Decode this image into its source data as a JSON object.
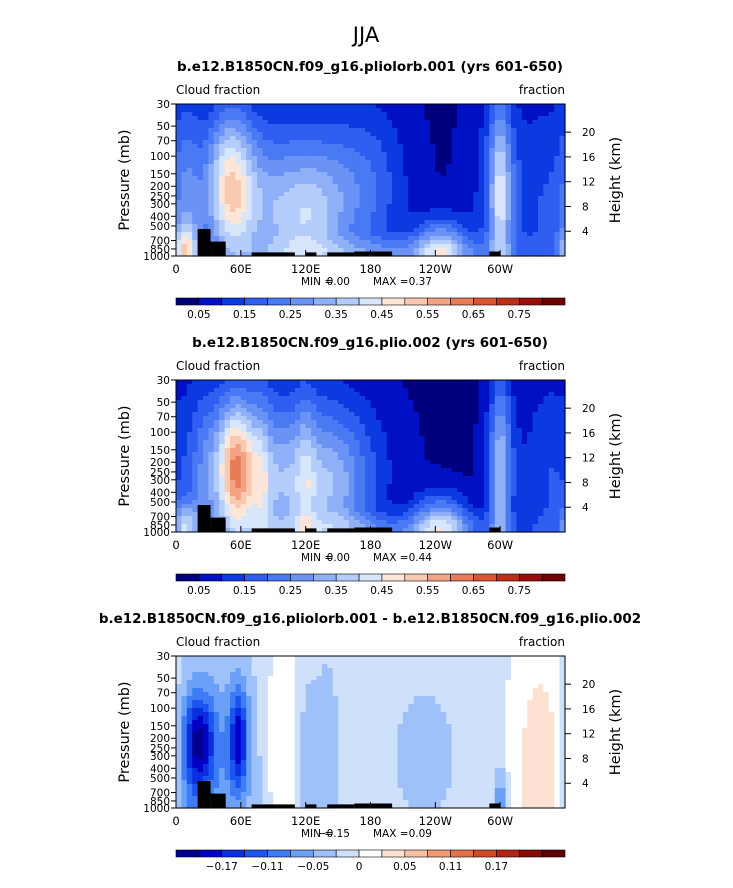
{
  "page_title": "JJA",
  "colors": {
    "seq": [
      "#00007e",
      "#0010c4",
      "#0a3ae0",
      "#2f5ef0",
      "#4a79f4",
      "#6a93f5",
      "#8fb0f7",
      "#b4cdfa",
      "#d8e6fc",
      "#fde6d8",
      "#f9c9b1",
      "#f2a383",
      "#e97b57",
      "#da5631",
      "#c02d17",
      "#9b0d0a",
      "#700000"
    ],
    "diff": [
      "#000090",
      "#0000c8",
      "#0a2ee0",
      "#1a55f0",
      "#3d7cf5",
      "#6aa0f7",
      "#9fc1f9",
      "#cfe0fb",
      "#ffffff",
      "#fde2d4",
      "#f9c1a3",
      "#f19a74",
      "#e5704a",
      "#d14a28",
      "#b32212",
      "#8c0606",
      "#5e0000"
    ]
  },
  "chart_data": [
    {
      "type": "heatmap",
      "title": "b.e12.B1850CN.f09_g16.pliolorb.001 (yrs 601-650)",
      "left_label": "Cloud fraction",
      "right_label": "fraction",
      "ylabel": "Pressure (mb)",
      "ylabel_right": "Height (km)",
      "x_ticks": [
        "0",
        "60E",
        "120E",
        "180",
        "120W",
        "60W"
      ],
      "y_ticks": [
        "1000",
        "850",
        "700",
        "500",
        "400",
        "300",
        "250",
        "200",
        "150",
        "100",
        "70",
        "50",
        "30"
      ],
      "y_right_ticks": [
        "4",
        "8",
        "12",
        "16",
        "20"
      ],
      "stats": {
        "min_label": "MIN =",
        "min": "0.00",
        "max_label": "MAX =",
        "max": "0.37"
      },
      "colorbar_labels": [
        "0.05",
        "0.15",
        "0.25",
        "0.35",
        "0.45",
        "0.55",
        "0.65",
        "0.75"
      ],
      "colorbar_levels": [
        0.0,
        0.05,
        0.1,
        0.15,
        0.2,
        0.25,
        0.3,
        0.35,
        0.4,
        0.45,
        0.5,
        0.55,
        0.6,
        0.65,
        0.7,
        0.75,
        0.8
      ],
      "palette": "seq",
      "vmin": 0.0,
      "vmax": 0.8,
      "base": 0.04,
      "blobs": [
        {
          "lon": 50,
          "p": 200,
          "dlon": 15,
          "dz": 1.2,
          "amp": 0.33
        },
        {
          "lon": 80,
          "p": 150,
          "dlon": 45,
          "dz": 1.3,
          "amp": 0.12
        },
        {
          "lon": 100,
          "p": 500,
          "dlon": 38,
          "dz": 1.1,
          "amp": 0.2
        },
        {
          "lon": 125,
          "p": 500,
          "dlon": 18,
          "dz": 0.9,
          "amp": 0.07
        },
        {
          "lon": 150,
          "p": 220,
          "dlon": 30,
          "dz": 1.2,
          "amp": 0.12
        },
        {
          "lon": 185,
          "p": 180,
          "dlon": 25,
          "dz": 1.5,
          "amp": 0.08
        },
        {
          "lon": 245,
          "p": 870,
          "dlon": 18,
          "dz": 0.5,
          "amp": 0.3
        },
        {
          "lon": 300,
          "p": 200,
          "dlon": 10,
          "dz": 1.3,
          "amp": 0.18
        },
        {
          "lon": 300,
          "p": 520,
          "dlon": 6,
          "dz": 2.5,
          "amp": 0.15
        },
        {
          "lon": 290,
          "p": 520,
          "dlon": 20,
          "dz": 2.5,
          "amp": 0.05
        },
        {
          "lon": 340,
          "p": 400,
          "dlon": 25,
          "dz": 2.0,
          "amp": 0.1
        },
        {
          "lon": 10,
          "p": 520,
          "dlon": 10,
          "dz": 2.0,
          "amp": 0.15
        },
        {
          "lon": 8,
          "p": 900,
          "dlon": 8,
          "dz": 0.4,
          "amp": 0.25
        },
        {
          "lon": 180,
          "p": 950,
          "dlon": 90,
          "dz": 0.25,
          "amp": 0.15
        }
      ]
    },
    {
      "type": "heatmap",
      "title": "b.e12.B1850CN.f09_g16.plio.002 (yrs 601-650)",
      "left_label": "Cloud fraction",
      "right_label": "fraction",
      "ylabel": "Pressure (mb)",
      "ylabel_right": "Height (km)",
      "x_ticks": [
        "0",
        "60E",
        "120E",
        "180",
        "120W",
        "60W"
      ],
      "y_ticks": [
        "1000",
        "850",
        "700",
        "500",
        "400",
        "300",
        "250",
        "200",
        "150",
        "100",
        "70",
        "50",
        "30"
      ],
      "y_right_ticks": [
        "4",
        "8",
        "12",
        "16",
        "20"
      ],
      "stats": {
        "min_label": "MIN =",
        "min": "0.00",
        "max_label": "MAX =",
        "max": "0.44"
      },
      "colorbar_labels": [
        "0.05",
        "0.15",
        "0.25",
        "0.35",
        "0.45",
        "0.55",
        "0.65",
        "0.75"
      ],
      "colorbar_levels": [
        0.0,
        0.05,
        0.1,
        0.15,
        0.2,
        0.25,
        0.3,
        0.35,
        0.4,
        0.45,
        0.5,
        0.55,
        0.6,
        0.65,
        0.7,
        0.75,
        0.8
      ],
      "palette": "seq",
      "vmin": 0.0,
      "vmax": 0.8,
      "base": 0.04,
      "blobs": [
        {
          "lon": 55,
          "p": 230,
          "dlon": 13,
          "dz": 1.1,
          "amp": 0.4
        },
        {
          "lon": 85,
          "p": 150,
          "dlon": 45,
          "dz": 1.3,
          "amp": 0.13
        },
        {
          "lon": 95,
          "p": 480,
          "dlon": 38,
          "dz": 1.1,
          "amp": 0.18
        },
        {
          "lon": 80,
          "p": 600,
          "dlon": 6,
          "dz": 2.0,
          "amp": 0.1
        },
        {
          "lon": 120,
          "p": 600,
          "dlon": 6,
          "dz": 2.0,
          "amp": 0.1
        },
        {
          "lon": 150,
          "p": 200,
          "dlon": 35,
          "dz": 1.2,
          "amp": 0.12
        },
        {
          "lon": 150,
          "p": 520,
          "dlon": 20,
          "dz": 1.0,
          "amp": 0.1
        },
        {
          "lon": 245,
          "p": 870,
          "dlon": 18,
          "dz": 0.5,
          "amp": 0.3
        },
        {
          "lon": 300,
          "p": 220,
          "dlon": 10,
          "dz": 1.3,
          "amp": 0.16
        },
        {
          "lon": 300,
          "p": 520,
          "dlon": 6,
          "dz": 2.5,
          "amp": 0.15
        },
        {
          "lon": 345,
          "p": 400,
          "dlon": 20,
          "dz": 2.0,
          "amp": 0.1
        },
        {
          "lon": 25,
          "p": 520,
          "dlon": 10,
          "dz": 2.0,
          "amp": 0.12
        },
        {
          "lon": 8,
          "p": 900,
          "dlon": 8,
          "dz": 0.4,
          "amp": 0.25
        },
        {
          "lon": 180,
          "p": 950,
          "dlon": 90,
          "dz": 0.25,
          "amp": 0.15
        }
      ]
    },
    {
      "type": "heatmap",
      "title": "b.e12.B1850CN.f09_g16.pliolorb.001 - b.e12.B1850CN.f09_g16.plio.002",
      "left_label": "Cloud fraction",
      "right_label": "fraction",
      "ylabel": "Pressure (mb)",
      "ylabel_right": "Height (km)",
      "x_ticks": [
        "0",
        "60E",
        "120E",
        "180",
        "120W",
        "60W"
      ],
      "y_ticks": [
        "1000",
        "850",
        "700",
        "500",
        "400",
        "300",
        "250",
        "200",
        "150",
        "100",
        "70",
        "50",
        "30"
      ],
      "y_right_ticks": [
        "4",
        "8",
        "12",
        "16",
        "20"
      ],
      "stats": {
        "min_label": "MIN =",
        "min": "−0.15",
        "max_label": "MAX =",
        "max": "0.09"
      },
      "colorbar_labels": [
        "−0.17",
        "−0.11",
        "−0.05",
        "0",
        "0.05",
        "0.11",
        "0.17"
      ],
      "colorbar_levels": [
        -0.23,
        -0.2,
        -0.17,
        -0.14,
        -0.11,
        -0.08,
        -0.05,
        -0.02,
        0.0,
        0.02,
        0.05,
        0.08,
        0.11,
        0.14,
        0.17,
        0.2,
        0.23
      ],
      "palette": "diff",
      "vmin": -0.23,
      "vmax": 0.23,
      "base": -0.005,
      "blobs": [
        {
          "lon": 22,
          "p": 210,
          "dlon": 10,
          "dz": 0.7,
          "amp": -0.14
        },
        {
          "lon": 58,
          "p": 200,
          "dlon": 6,
          "dz": 0.8,
          "amp": -0.15
        },
        {
          "lon": 40,
          "p": 450,
          "dlon": 28,
          "dz": 2.0,
          "amp": -0.06
        },
        {
          "lon": 15,
          "p": 600,
          "dlon": 10,
          "dz": 1.8,
          "amp": -0.05
        },
        {
          "lon": 100,
          "p": 300,
          "dlon": 15,
          "dz": 1.8,
          "amp": 0.03
        },
        {
          "lon": 120,
          "p": 600,
          "dlon": 8,
          "dz": 2.0,
          "amp": -0.04
        },
        {
          "lon": 140,
          "p": 600,
          "dlon": 8,
          "dz": 2.0,
          "amp": -0.04
        },
        {
          "lon": 230,
          "p": 300,
          "dlon": 22,
          "dz": 1.2,
          "amp": -0.03
        },
        {
          "lon": 340,
          "p": 500,
          "dlon": 18,
          "dz": 2.0,
          "amp": 0.05
        },
        {
          "lon": 300,
          "p": 850,
          "dlon": 4,
          "dz": 0.5,
          "amp": -0.07
        }
      ]
    }
  ]
}
